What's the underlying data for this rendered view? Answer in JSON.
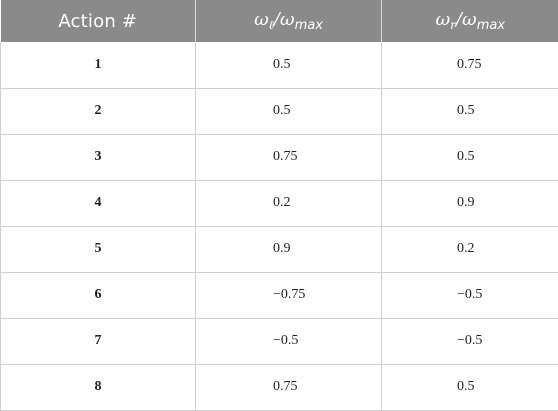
{
  "table": {
    "headers": {
      "action": "Action #",
      "omega_left": {
        "symbol": "ω",
        "sub": "ℓ",
        "sep": "/",
        "symbol2": "ω",
        "sub2": "max"
      },
      "omega_right": {
        "symbol": "ω",
        "sub": "r",
        "sep": "/",
        "symbol2": "ω",
        "sub2": "max"
      }
    },
    "rows": [
      {
        "action": "1",
        "left": "0.5",
        "right": "0.75"
      },
      {
        "action": "2",
        "left": "0.5",
        "right": "0.5"
      },
      {
        "action": "3",
        "left": "0.75",
        "right": "0.5"
      },
      {
        "action": "4",
        "left": "0.2",
        "right": "0.9"
      },
      {
        "action": "5",
        "left": "0.9",
        "right": "0.2"
      },
      {
        "action": "6",
        "left": "−0.75",
        "right": "−0.5"
      },
      {
        "action": "7",
        "left": "−0.5",
        "right": "−0.5"
      },
      {
        "action": "8",
        "left": "0.75",
        "right": "0.5"
      }
    ],
    "colors": {
      "header_background": "#8a8a8a",
      "header_text": "#ffffff",
      "grid_lines": "#d0d0d0"
    }
  }
}
